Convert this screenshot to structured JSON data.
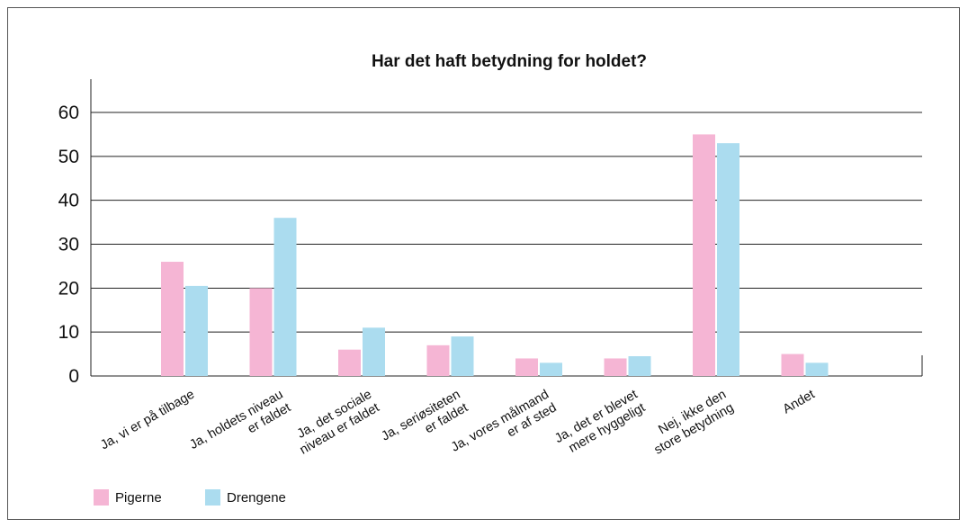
{
  "chart_data": {
    "type": "bar",
    "title": "Har det haft betydning for holdet?",
    "categories": [
      [
        "Ja, vi er på tilbage"
      ],
      [
        "Ja, holdets niveau",
        "er faldet"
      ],
      [
        "Ja, det sociale",
        "niveau er faldet"
      ],
      [
        "Ja, seriøsiteten",
        "er faldet"
      ],
      [
        "Ja, vores målmand",
        "er af sted"
      ],
      [
        "Ja, det er blevet",
        "mere hyggeligt"
      ],
      [
        "Nej, ikke den",
        "store betydning"
      ],
      [
        "Andet"
      ]
    ],
    "series": [
      {
        "name": "Pigerne",
        "color": "#f5b5d4",
        "values": [
          26,
          20,
          6,
          7,
          4,
          4,
          55,
          5
        ]
      },
      {
        "name": "Drengene",
        "color": "#abdcef",
        "values": [
          20.5,
          36,
          11,
          9,
          3,
          4.5,
          53,
          3
        ]
      }
    ],
    "yticks": [
      0,
      10,
      20,
      30,
      40,
      50,
      60
    ],
    "ylim": [
      0,
      60
    ],
    "grid": true,
    "legend": "bottom-left",
    "xlabel": "",
    "ylabel": ""
  }
}
